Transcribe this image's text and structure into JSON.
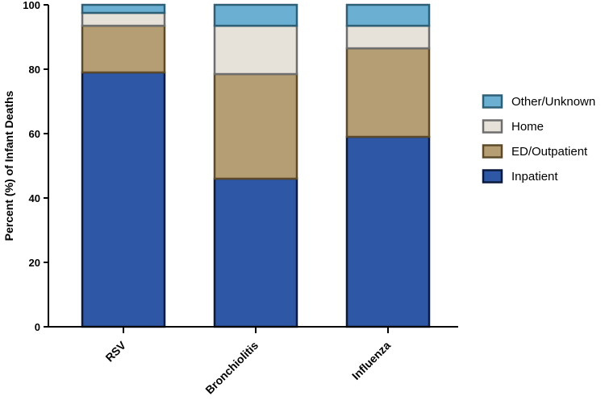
{
  "chart_data": {
    "type": "bar",
    "stacked": true,
    "categories": [
      "RSV",
      "Bronchiolitis",
      "Influenza"
    ],
    "series": [
      {
        "name": "Inpatient",
        "values": [
          79,
          46,
          59
        ],
        "color": "#2E58A5",
        "stroke": "#0B1A3A"
      },
      {
        "name": "ED/Outpatient",
        "values": [
          14.5,
          32.5,
          27.5
        ],
        "color": "#B59E74",
        "stroke": "#5C4A2A"
      },
      {
        "name": "Home",
        "values": [
          4,
          15,
          7
        ],
        "color": "#E6E2DA",
        "stroke": "#6E6E6E"
      },
      {
        "name": "Other/Unknown",
        "values": [
          2.5,
          6.5,
          6.5
        ],
        "color": "#6BB0D3",
        "stroke": "#2F5F75"
      }
    ],
    "ylabel": "Percent (%) of Infant Deaths",
    "xlabel": "",
    "ylim": [
      0,
      100
    ],
    "yticks": [
      0,
      20,
      40,
      60,
      80,
      100
    ],
    "grid": false,
    "legend_position": "right"
  }
}
